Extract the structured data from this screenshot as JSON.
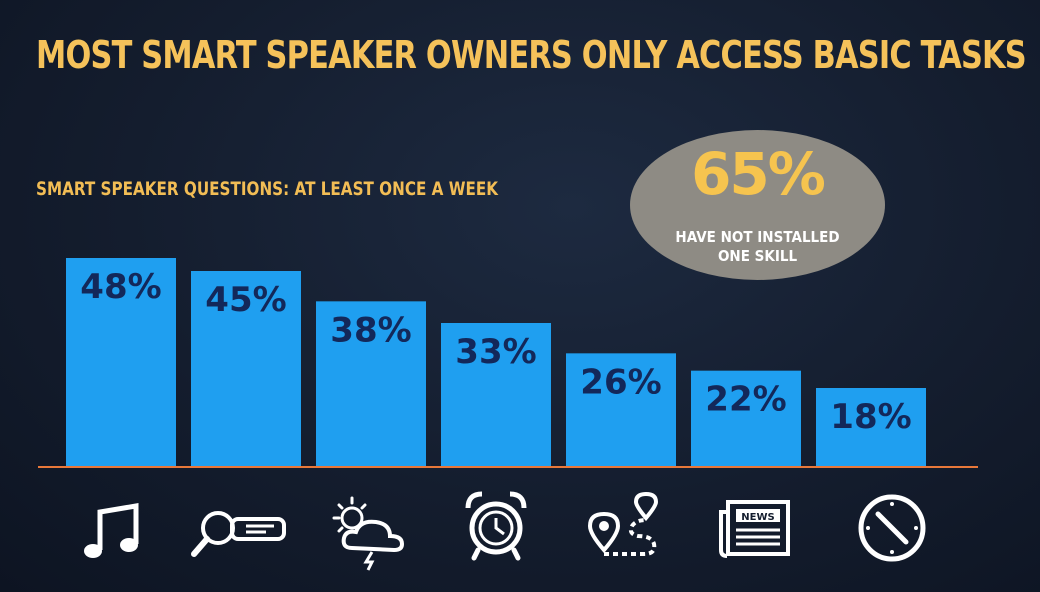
{
  "slide": {
    "title": "MOST SMART SPEAKER OWNERS ONLY ACCESS BASIC TASKS",
    "subtitle": "SMART SPEAKER QUESTIONS: AT LEAST ONCE A WEEK"
  },
  "callout": {
    "value": "65%",
    "text": "HAVE NOT INSTALLED\nONE SKILL"
  },
  "colors": {
    "bar": "#1f9ff0",
    "bar_label": "#13285a",
    "baseline": "#e8783a",
    "title": "#f5c25a",
    "icon": "#ffffff"
  },
  "chart_data": {
    "type": "bar",
    "categories": [
      "music-note-icon",
      "search-icon",
      "weather-icon",
      "alarm-clock-icon",
      "route-icon",
      "news-icon",
      "clock-icon"
    ],
    "values": [
      48,
      45,
      38,
      33,
      26,
      22,
      18
    ],
    "labels": [
      "48%",
      "45%",
      "38%",
      "33%",
      "26%",
      "22%",
      "18%"
    ],
    "ylim": [
      0,
      50
    ],
    "title": "SMART SPEAKER QUESTIONS: AT LEAST ONCE A WEEK",
    "xlabel": "",
    "ylabel": "",
    "grid": false
  }
}
